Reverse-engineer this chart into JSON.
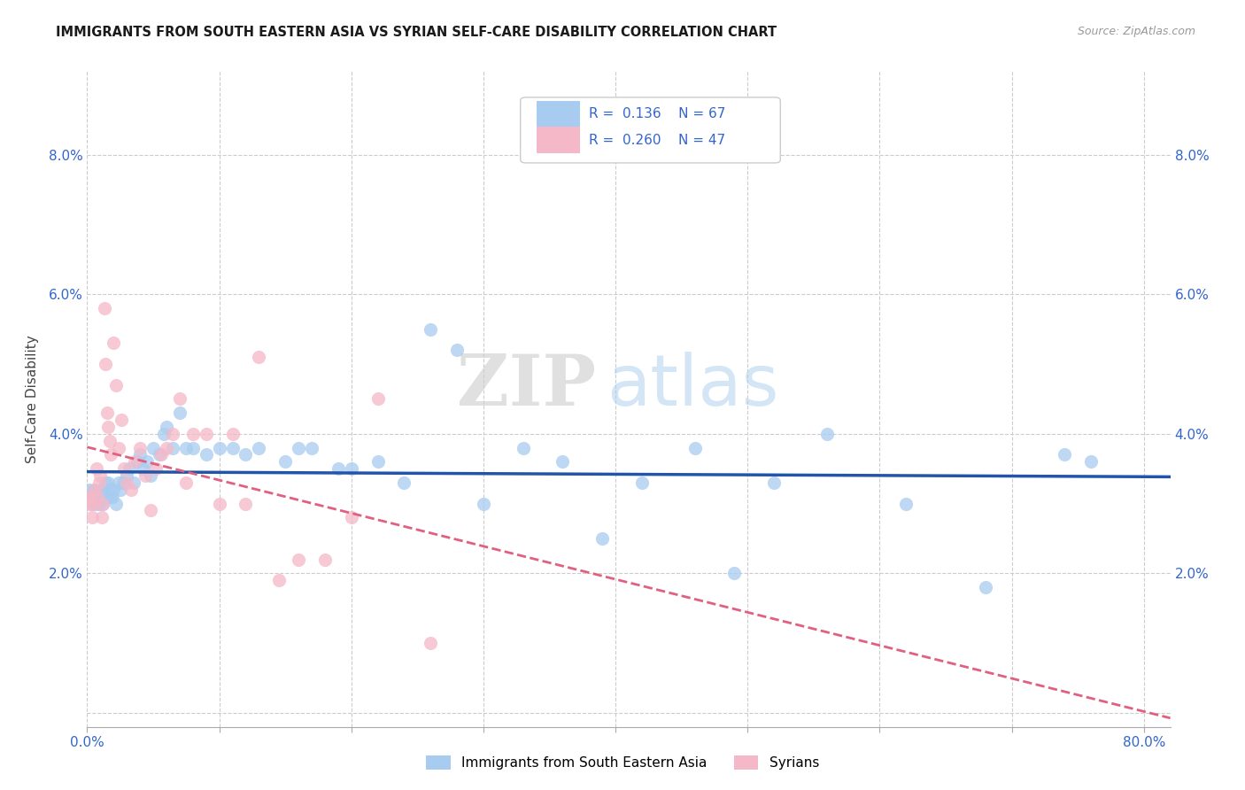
{
  "title": "IMMIGRANTS FROM SOUTH EASTERN ASIA VS SYRIAN SELF-CARE DISABILITY CORRELATION CHART",
  "source": "Source: ZipAtlas.com",
  "ylabel": "Self-Care Disability",
  "xlim": [
    0.0,
    0.82
  ],
  "ylim": [
    -0.002,
    0.092
  ],
  "color_blue": "#A8CCF0",
  "color_pink": "#F5B8C8",
  "color_blue_line": "#2255AA",
  "color_pink_line": "#E06080",
  "color_axis_text": "#3366CC",
  "background": "#FFFFFF",
  "watermark_zip": "ZIP",
  "watermark_atlas": "atlas",
  "legend_r1": "0.136",
  "legend_n1": "67",
  "legend_r2": "0.260",
  "legend_n2": "47",
  "blue_label": "Immigrants from South Eastern Asia",
  "pink_label": "Syrians",
  "blue_points_x": [
    0.001,
    0.002,
    0.003,
    0.004,
    0.005,
    0.006,
    0.007,
    0.008,
    0.009,
    0.01,
    0.011,
    0.012,
    0.013,
    0.014,
    0.015,
    0.016,
    0.017,
    0.018,
    0.019,
    0.02,
    0.022,
    0.024,
    0.025,
    0.027,
    0.03,
    0.032,
    0.035,
    0.038,
    0.04,
    0.042,
    0.045,
    0.048,
    0.05,
    0.055,
    0.058,
    0.06,
    0.065,
    0.07,
    0.075,
    0.08,
    0.09,
    0.1,
    0.11,
    0.12,
    0.13,
    0.15,
    0.16,
    0.17,
    0.19,
    0.2,
    0.22,
    0.24,
    0.26,
    0.28,
    0.3,
    0.33,
    0.36,
    0.39,
    0.42,
    0.46,
    0.49,
    0.52,
    0.56,
    0.62,
    0.68,
    0.74,
    0.76
  ],
  "blue_points_y": [
    0.032,
    0.031,
    0.03,
    0.031,
    0.032,
    0.031,
    0.03,
    0.031,
    0.03,
    0.031,
    0.032,
    0.03,
    0.032,
    0.033,
    0.031,
    0.033,
    0.032,
    0.031,
    0.031,
    0.032,
    0.03,
    0.033,
    0.032,
    0.033,
    0.034,
    0.035,
    0.033,
    0.036,
    0.037,
    0.035,
    0.036,
    0.034,
    0.038,
    0.037,
    0.04,
    0.041,
    0.038,
    0.043,
    0.038,
    0.038,
    0.037,
    0.038,
    0.038,
    0.037,
    0.038,
    0.036,
    0.038,
    0.038,
    0.035,
    0.035,
    0.036,
    0.033,
    0.055,
    0.052,
    0.03,
    0.038,
    0.036,
    0.025,
    0.033,
    0.038,
    0.02,
    0.033,
    0.04,
    0.03,
    0.018,
    0.037,
    0.036
  ],
  "pink_points_x": [
    0.001,
    0.002,
    0.003,
    0.004,
    0.005,
    0.006,
    0.007,
    0.008,
    0.009,
    0.01,
    0.011,
    0.012,
    0.013,
    0.014,
    0.015,
    0.016,
    0.017,
    0.018,
    0.02,
    0.022,
    0.024,
    0.026,
    0.028,
    0.03,
    0.033,
    0.036,
    0.04,
    0.044,
    0.048,
    0.052,
    0.056,
    0.06,
    0.065,
    0.07,
    0.075,
    0.08,
    0.09,
    0.1,
    0.11,
    0.12,
    0.13,
    0.145,
    0.16,
    0.18,
    0.2,
    0.22,
    0.26
  ],
  "pink_points_y": [
    0.031,
    0.03,
    0.031,
    0.028,
    0.03,
    0.032,
    0.035,
    0.031,
    0.033,
    0.034,
    0.028,
    0.03,
    0.058,
    0.05,
    0.043,
    0.041,
    0.039,
    0.037,
    0.053,
    0.047,
    0.038,
    0.042,
    0.035,
    0.033,
    0.032,
    0.036,
    0.038,
    0.034,
    0.029,
    0.035,
    0.037,
    0.038,
    0.04,
    0.045,
    0.033,
    0.04,
    0.04,
    0.03,
    0.04,
    0.03,
    0.051,
    0.019,
    0.022,
    0.022,
    0.028,
    0.045,
    0.01
  ],
  "figsize": [
    14.06,
    8.92
  ],
  "dpi": 100
}
